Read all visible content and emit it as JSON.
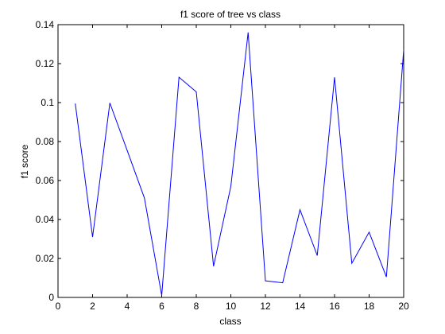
{
  "chart_data": {
    "type": "line",
    "title": "f1 score of tree vs class",
    "xlabel": "class",
    "ylabel": "f1 score",
    "xlim": [
      0,
      20
    ],
    "ylim": [
      0,
      0.14
    ],
    "xticks": [
      0,
      2,
      4,
      6,
      8,
      10,
      12,
      14,
      16,
      18,
      20
    ],
    "yticks": [
      0,
      0.02,
      0.04,
      0.06,
      0.08,
      0.1,
      0.12,
      0.14
    ],
    "grid": false,
    "series": [
      {
        "color": "#0000ff",
        "x": [
          1,
          2,
          3,
          4,
          5,
          6,
          7,
          8,
          9,
          10,
          11,
          12,
          13,
          14,
          15,
          16,
          17,
          18,
          19,
          20
        ],
        "y": [
          0.0995,
          0.031,
          0.0998,
          0.0755,
          0.051,
          0.001,
          0.113,
          0.1055,
          0.016,
          0.057,
          0.136,
          0.0085,
          0.0075,
          0.045,
          0.0215,
          0.113,
          0.0175,
          0.0335,
          0.0105,
          0.127
        ]
      }
    ]
  }
}
